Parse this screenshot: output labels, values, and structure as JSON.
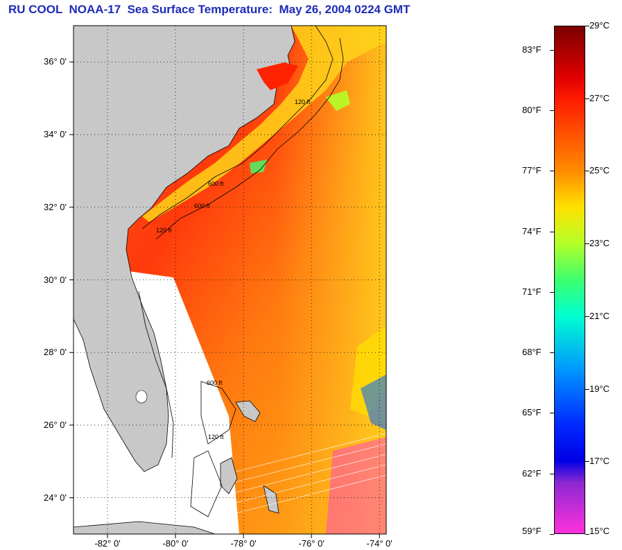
{
  "title": "RU COOL  NOAA-17  Sea Surface Temperature:  May 26, 2004 0224 GMT",
  "map": {
    "lat_labels": [
      "36° 0'",
      "34° 0'",
      "32° 0'",
      "30° 0'",
      "28° 0'",
      "26° 0'",
      "24° 0'"
    ],
    "lon_labels": [
      "-82° 0'",
      "-80° 0'",
      "-78° 0'",
      "-76° 0'",
      "-74° 0'"
    ],
    "lat_values": [
      36,
      34,
      32,
      30,
      28,
      26,
      24
    ],
    "lon_values": [
      -82,
      -80,
      -78,
      -76,
      -74
    ],
    "lat_range": [
      23,
      37
    ],
    "lon_range": [
      -83,
      -73.8
    ],
    "isobath_labels": [
      "600 ft",
      "120 ft",
      "600 ft",
      "120 ft",
      "600 ft",
      "120 ft"
    ],
    "colors": {
      "land": "#c8c8c8",
      "no_data": "#ffffff",
      "grid": "#000000"
    }
  },
  "colorbar": {
    "fahrenheit_labels": [
      "83°F",
      "80°F",
      "77°F",
      "74°F",
      "71°F",
      "68°F",
      "65°F",
      "62°F",
      "59°F"
    ],
    "fahrenheit_values": [
      83,
      80,
      77,
      74,
      71,
      68,
      65,
      62,
      59
    ],
    "celsius_labels": [
      "29°C",
      "27°C",
      "25°C",
      "23°C",
      "21°C",
      "19°C",
      "17°C",
      "15°C"
    ],
    "celsius_values": [
      29,
      27,
      25,
      23,
      21,
      19,
      17,
      15
    ],
    "range_c": [
      15,
      29
    ],
    "stops": [
      {
        "c": 29,
        "color": "#7a0000"
      },
      {
        "c": 27.6,
        "color": "#e00000"
      },
      {
        "c": 27,
        "color": "#ff1a00"
      },
      {
        "c": 25,
        "color": "#ff8c00"
      },
      {
        "c": 24,
        "color": "#ffe100"
      },
      {
        "c": 23,
        "color": "#b4ff28"
      },
      {
        "c": 22,
        "color": "#3cff6e"
      },
      {
        "c": 21,
        "color": "#00ffd0"
      },
      {
        "c": 19.5,
        "color": "#0096ff"
      },
      {
        "c": 18,
        "color": "#0028ff"
      },
      {
        "c": 17,
        "color": "#0000e6"
      },
      {
        "c": 16.4,
        "color": "#8c28d2"
      },
      {
        "c": 15,
        "color": "#ff32dc"
      }
    ]
  }
}
